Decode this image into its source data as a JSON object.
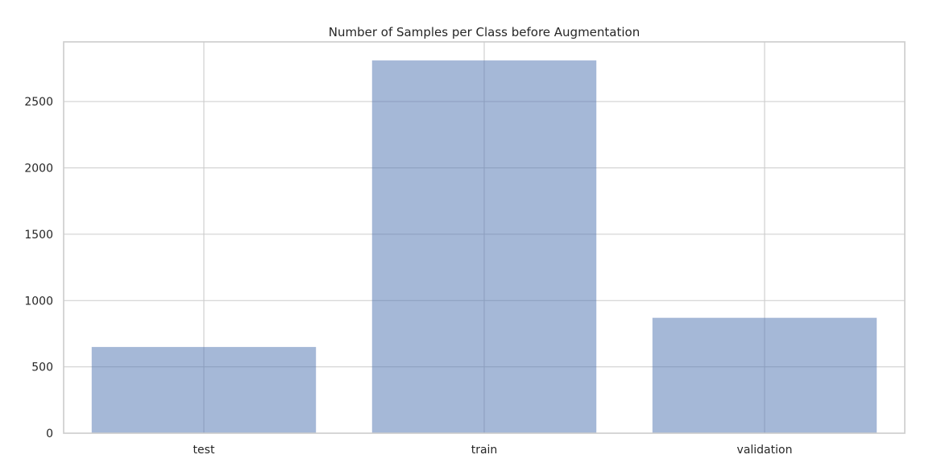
{
  "chart_data": {
    "type": "bar",
    "title": "Number of Samples per Class before Augmentation",
    "xlabel": "",
    "ylabel": "",
    "categories": [
      "test",
      "train",
      "validation"
    ],
    "values": [
      650,
      2810,
      870
    ],
    "ylim": [
      0,
      2950
    ],
    "yticks": [
      0,
      500,
      1000,
      1500,
      2000,
      2500
    ],
    "grid": true,
    "bar_color": "#4c72b0",
    "bar_alpha": 0.5
  }
}
